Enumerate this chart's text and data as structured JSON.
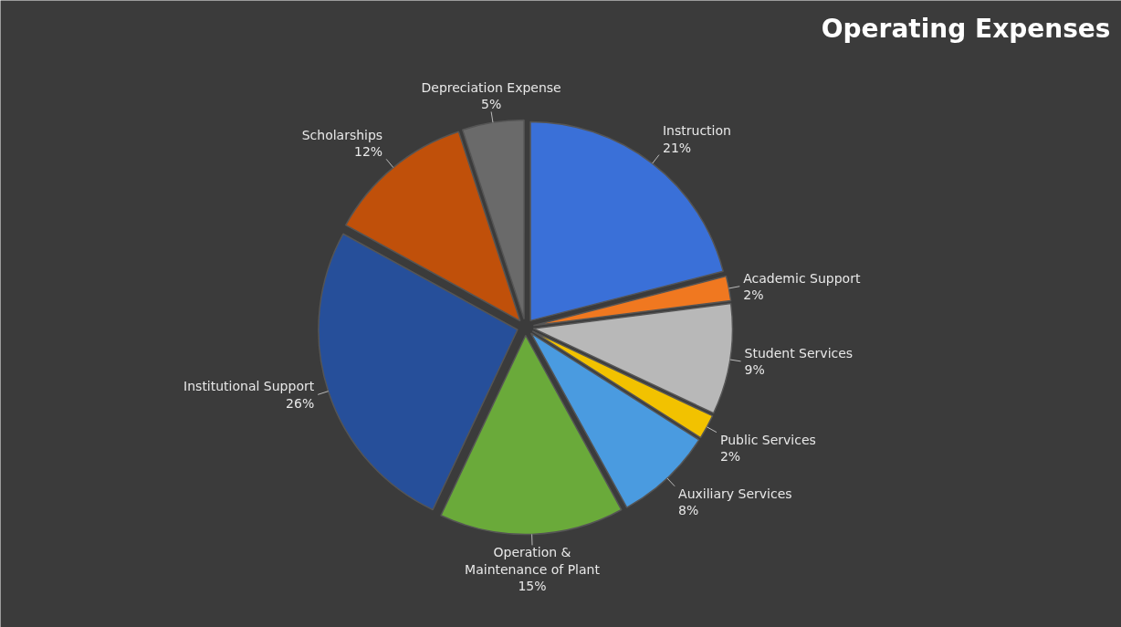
{
  "chart_data": {
    "type": "pie",
    "title": "Operating Expenses",
    "categories": [
      "Instruction",
      "Academic Support",
      "Student Services",
      "Public Services",
      "Auxiliary Services",
      "Operation & Maintenance of Plant",
      "Institutional Support",
      "Scholarships",
      "Depreciation Expense"
    ],
    "values": [
      21,
      2,
      9,
      2,
      8,
      15,
      26,
      12,
      5
    ],
    "colors": [
      "#3a70d8",
      "#f07820",
      "#b8b8b8",
      "#f2c200",
      "#4a9be0",
      "#6aaa3a",
      "#264f9a",
      "#c0500a",
      "#6a6a6a"
    ],
    "value_labels": [
      "21%",
      "2%",
      "9%",
      "2%",
      "8%",
      "15%",
      "26%",
      "12%",
      "5%"
    ]
  }
}
